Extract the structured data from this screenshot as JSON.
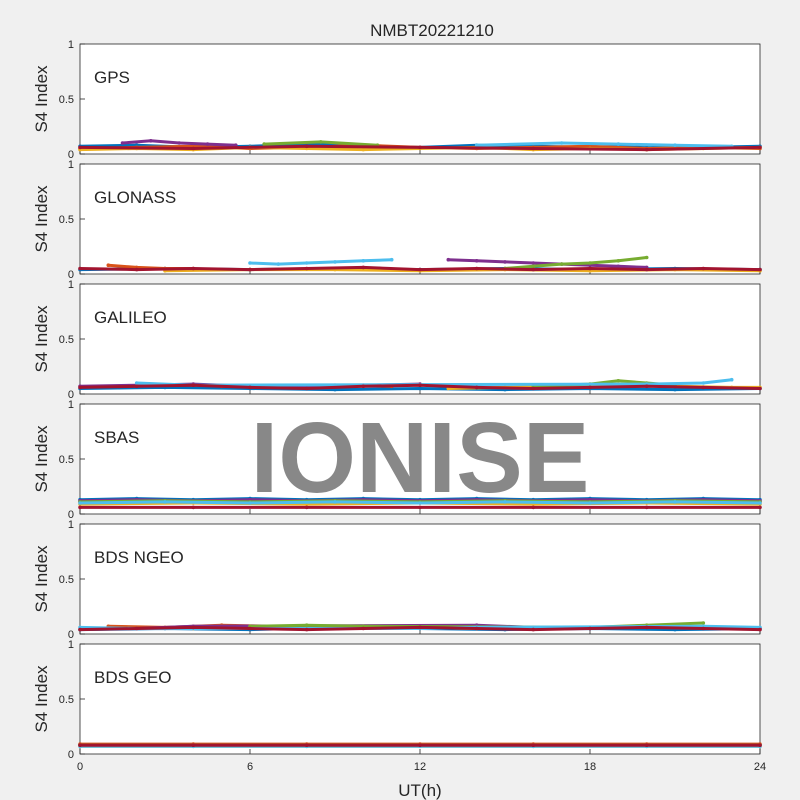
{
  "chart_data": {
    "type": "scatter",
    "title": "NMBT20221210",
    "xlabel": "UT(h)",
    "ylabel": "S4 Index",
    "xlim": [
      0,
      24
    ],
    "ylim": [
      0,
      1
    ],
    "x_ticks": [
      "0",
      "6",
      "12",
      "18",
      "24"
    ],
    "y_ticks": [
      "0",
      "0.5",
      "1"
    ],
    "grid": false,
    "watermark": "IONISE",
    "series_colors": [
      "#0072BD",
      "#D95319",
      "#EDB120",
      "#7E2F8E",
      "#77AC30",
      "#4DBEEE",
      "#A2142F"
    ],
    "panels": [
      {
        "label": "GPS",
        "traces": [
          {
            "x": [
              0,
              2,
              4,
              6,
              8,
              10,
              12,
              14,
              16,
              18,
              20,
              22,
              24
            ],
            "y": [
              0.07,
              0.08,
              0.06,
              0.07,
              0.09,
              0.07,
              0.06,
              0.08,
              0.07,
              0.06,
              0.08,
              0.06,
              0.07
            ]
          },
          {
            "x": [
              0,
              2,
              4,
              6,
              8,
              10,
              12,
              14,
              16,
              18,
              20,
              22,
              24
            ],
            "y": [
              0.05,
              0.06,
              0.07,
              0.05,
              0.06,
              0.08,
              0.06,
              0.05,
              0.06,
              0.07,
              0.05,
              0.06,
              0.05
            ]
          },
          {
            "x": [
              0,
              2,
              4,
              6,
              8,
              10,
              12,
              14,
              16,
              18,
              20,
              22,
              24
            ],
            "y": [
              0.04,
              0.05,
              0.04,
              0.06,
              0.05,
              0.04,
              0.05,
              0.06,
              0.04,
              0.05,
              0.04,
              0.05,
              0.06
            ]
          },
          {
            "x": [
              1.5,
              2.5,
              3.5,
              4.5,
              5.5
            ],
            "y": [
              0.1,
              0.12,
              0.1,
              0.09,
              0.08
            ]
          },
          {
            "x": [
              6.5,
              8.5,
              10.5
            ],
            "y": [
              0.09,
              0.11,
              0.08
            ]
          },
          {
            "x": [
              14,
              17,
              19,
              21,
              23
            ],
            "y": [
              0.08,
              0.1,
              0.09,
              0.08,
              0.07
            ]
          },
          {
            "x": [
              0,
              4,
              8,
              12,
              16,
              20,
              24
            ],
            "y": [
              0.06,
              0.05,
              0.07,
              0.06,
              0.05,
              0.04,
              0.06
            ]
          }
        ]
      },
      {
        "label": "GLONASS",
        "traces": [
          {
            "x": [
              0,
              3,
              6,
              9,
              12,
              15,
              18,
              21,
              24
            ],
            "y": [
              0.04,
              0.05,
              0.04,
              0.05,
              0.04,
              0.05,
              0.04,
              0.05,
              0.04
            ]
          },
          {
            "x": [
              1,
              2,
              3,
              4
            ],
            "y": [
              0.08,
              0.06,
              0.05,
              0.05
            ]
          },
          {
            "x": [
              3,
              6,
              9,
              12,
              15,
              18,
              21,
              24
            ],
            "y": [
              0.03,
              0.04,
              0.04,
              0.03,
              0.04,
              0.03,
              0.04,
              0.03
            ]
          },
          {
            "x": [
              13,
              14,
              15,
              16,
              17,
              18,
              19,
              20
            ],
            "y": [
              0.13,
              0.12,
              0.11,
              0.1,
              0.09,
              0.08,
              0.07,
              0.06
            ]
          },
          {
            "x": [
              15,
              16,
              17,
              18,
              19,
              20
            ],
            "y": [
              0.05,
              0.07,
              0.09,
              0.1,
              0.12,
              0.15
            ]
          },
          {
            "x": [
              6,
              7,
              8,
              9,
              10,
              11
            ],
            "y": [
              0.1,
              0.09,
              0.1,
              0.11,
              0.12,
              0.13
            ]
          },
          {
            "x": [
              0,
              2,
              4,
              6,
              8,
              10,
              12,
              14,
              16,
              18,
              20,
              22,
              24
            ],
            "y": [
              0.05,
              0.04,
              0.05,
              0.04,
              0.05,
              0.06,
              0.04,
              0.05,
              0.04,
              0.05,
              0.04,
              0.05,
              0.04
            ]
          }
        ]
      },
      {
        "label": "GALILEO",
        "traces": [
          {
            "x": [
              0,
              3,
              6,
              9,
              12,
              15,
              18,
              21,
              24
            ],
            "y": [
              0.05,
              0.06,
              0.05,
              0.04,
              0.05,
              0.04,
              0.05,
              0.04,
              0.05
            ]
          },
          {
            "x": [
              5,
              7,
              9,
              11
            ],
            "y": [
              0.07,
              0.06,
              0.08,
              0.07
            ]
          },
          {
            "x": [
              13,
              15,
              17,
              19,
              21,
              23,
              24
            ],
            "y": [
              0.05,
              0.06,
              0.07,
              0.08,
              0.07,
              0.06,
              0.06
            ]
          },
          {
            "x": [
              0,
              2,
              4,
              6,
              8,
              10,
              12
            ],
            "y": [
              0.07,
              0.08,
              0.09,
              0.07,
              0.06,
              0.08,
              0.09
            ]
          },
          {
            "x": [
              16,
              18,
              19,
              20,
              21
            ],
            "y": [
              0.07,
              0.09,
              0.12,
              0.1,
              0.08
            ]
          },
          {
            "x": [
              2,
              4,
              20,
              22,
              23
            ],
            "y": [
              0.1,
              0.08,
              0.09,
              0.1,
              0.13
            ]
          },
          {
            "x": [
              0,
              2,
              4,
              6,
              8,
              10,
              12,
              14,
              16,
              18,
              20,
              22,
              24
            ],
            "y": [
              0.06,
              0.07,
              0.08,
              0.06,
              0.05,
              0.07,
              0.08,
              0.06,
              0.05,
              0.06,
              0.07,
              0.06,
              0.05
            ]
          }
        ]
      },
      {
        "label": "SBAS",
        "traces": [
          {
            "x": [
              0,
              2,
              4,
              6,
              8,
              10,
              12,
              14,
              16,
              18,
              20,
              22,
              24
            ],
            "y": [
              0.13,
              0.14,
              0.13,
              0.14,
              0.13,
              0.14,
              0.13,
              0.14,
              0.13,
              0.14,
              0.13,
              0.14,
              0.13
            ]
          },
          {
            "x": [
              0,
              4,
              8,
              12,
              16,
              20,
              24
            ],
            "y": [
              0.11,
              0.1,
              0.11,
              0.1,
              0.11,
              0.1,
              0.11
            ]
          },
          {
            "x": [
              0,
              4,
              8,
              12,
              16,
              20,
              24
            ],
            "y": [
              0.09,
              0.1,
              0.09,
              0.1,
              0.09,
              0.1,
              0.09
            ]
          },
          {
            "x": [
              0,
              2,
              4,
              6,
              8,
              10,
              12,
              14,
              16,
              18,
              20,
              22,
              24
            ],
            "y": [
              0.12,
              0.13,
              0.12,
              0.13,
              0.12,
              0.13,
              0.12,
              0.13,
              0.12,
              0.13,
              0.12,
              0.13,
              0.12
            ]
          },
          {
            "x": [
              0,
              3,
              6,
              9,
              12,
              15,
              18,
              21,
              24
            ],
            "y": [
              0.11,
              0.12,
              0.11,
              0.12,
              0.11,
              0.12,
              0.11,
              0.12,
              0.11
            ]
          },
          {
            "x": [
              0,
              3,
              6,
              9,
              12,
              15,
              18,
              21,
              24
            ],
            "y": [
              0.1,
              0.11,
              0.1,
              0.11,
              0.1,
              0.11,
              0.1,
              0.11,
              0.1
            ]
          },
          {
            "x": [
              0,
              4,
              8,
              12,
              16,
              20,
              24
            ],
            "y": [
              0.06,
              0.06,
              0.06,
              0.06,
              0.06,
              0.06,
              0.06
            ]
          }
        ]
      },
      {
        "label": "BDS NGEO",
        "traces": [
          {
            "x": [
              0,
              3,
              6,
              9,
              12,
              15,
              18,
              21,
              24
            ],
            "y": [
              0.04,
              0.05,
              0.04,
              0.06,
              0.05,
              0.04,
              0.05,
              0.04,
              0.05
            ]
          },
          {
            "x": [
              1,
              3,
              5,
              7,
              9
            ],
            "y": [
              0.07,
              0.06,
              0.08,
              0.07,
              0.06
            ]
          },
          {
            "x": [
              4,
              6,
              8,
              10,
              12,
              14,
              16
            ],
            "y": [
              0.05,
              0.06,
              0.05,
              0.07,
              0.06,
              0.05,
              0.06
            ]
          },
          {
            "x": [
              2,
              4,
              14,
              16,
              18,
              20,
              22,
              24
            ],
            "y": [
              0.05,
              0.07,
              0.08,
              0.06,
              0.05,
              0.07,
              0.06,
              0.05
            ]
          },
          {
            "x": [
              6,
              8,
              10,
              18,
              20,
              22
            ],
            "y": [
              0.07,
              0.08,
              0.07,
              0.06,
              0.08,
              0.1
            ]
          },
          {
            "x": [
              0,
              2,
              12,
              14,
              22,
              24
            ],
            "y": [
              0.06,
              0.05,
              0.05,
              0.06,
              0.07,
              0.06
            ]
          },
          {
            "x": [
              0,
              2,
              4,
              6,
              8,
              10,
              12,
              14,
              16,
              18,
              20,
              22,
              24
            ],
            "y": [
              0.04,
              0.05,
              0.06,
              0.05,
              0.04,
              0.05,
              0.06,
              0.05,
              0.04,
              0.05,
              0.06,
              0.05,
              0.04
            ]
          }
        ]
      },
      {
        "label": "BDS GEO",
        "traces": [
          {
            "x": [
              0,
              4,
              8,
              12,
              16,
              20,
              24
            ],
            "y": [
              0.08,
              0.08,
              0.08,
              0.08,
              0.08,
              0.08,
              0.08
            ]
          },
          {
            "x": [
              0,
              4,
              8,
              12,
              16,
              20,
              24
            ],
            "y": [
              0.09,
              0.09,
              0.09,
              0.09,
              0.09,
              0.09,
              0.09
            ]
          },
          {
            "x": [
              0,
              4,
              8,
              12,
              16,
              20,
              24
            ],
            "y": [
              0.07,
              0.07,
              0.07,
              0.07,
              0.07,
              0.07,
              0.07
            ]
          },
          {
            "x": [
              0,
              4,
              8,
              12,
              16,
              20,
              24
            ],
            "y": [
              0.08,
              0.08,
              0.08,
              0.08,
              0.08,
              0.08,
              0.08
            ]
          },
          {
            "x": [
              0,
              4,
              8,
              12,
              16,
              20,
              24
            ],
            "y": [
              0.08,
              0.08,
              0.08,
              0.08,
              0.08,
              0.08,
              0.08
            ]
          },
          {
            "x": [
              0,
              4,
              8,
              12,
              16,
              20,
              24
            ],
            "y": [
              0.07,
              0.07,
              0.07,
              0.07,
              0.07,
              0.07,
              0.07
            ]
          },
          {
            "x": [
              0,
              4,
              8,
              12,
              16,
              20,
              24
            ],
            "y": [
              0.08,
              0.08,
              0.08,
              0.08,
              0.08,
              0.08,
              0.08
            ]
          }
        ]
      }
    ]
  }
}
